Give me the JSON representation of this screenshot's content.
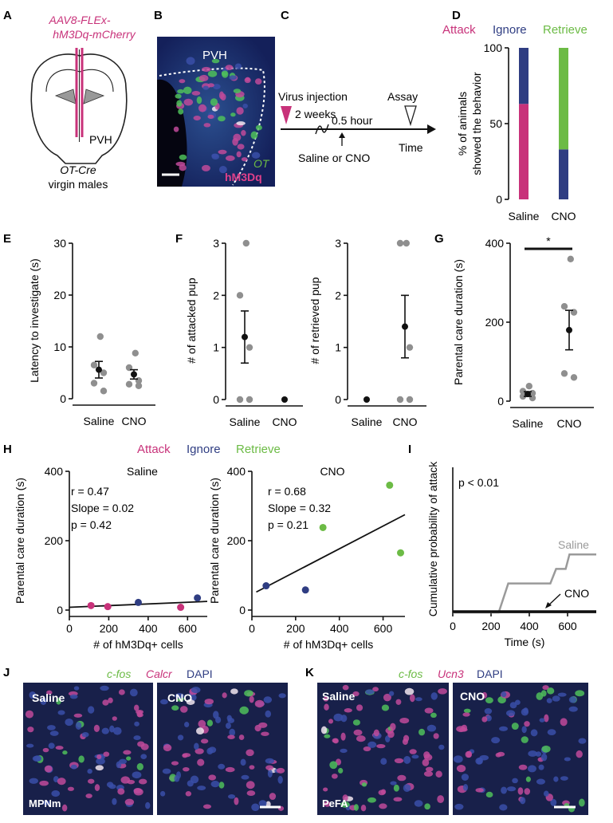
{
  "colors": {
    "attack": "#c8327a",
    "ignore": "#2f3d82",
    "retrieve": "#6cbb45",
    "saline_line": "#9a9a9a",
    "grey_dot": "#8f8f8f",
    "scale_white": "#ffffff"
  },
  "panel_labels": [
    "A",
    "B",
    "C",
    "D",
    "E",
    "F",
    "G",
    "H",
    "I",
    "J",
    "K"
  ],
  "panel_a": {
    "virus_line1": "AAV8-FLEx-",
    "virus_line2": "hM3Dq-mCherry",
    "region": "PVH",
    "mouse_line": "OT-Cre",
    "mouse_desc": "virgin males"
  },
  "panel_b": {
    "region": "PVH",
    "label_ot": "OT",
    "label_hm3dq": "hM3Dq"
  },
  "panel_c": {
    "virus": "Virus injection",
    "weeks": "2 weeks",
    "assay": "Assay",
    "hour": "0.5 hour",
    "treatment": "Saline or CNO",
    "time": "Time"
  },
  "legend": {
    "attack": "Attack",
    "ignore": "Ignore",
    "retrieve": "Retrieve"
  },
  "panel_j": {
    "label_cfos": "c-fos",
    "label_gene": "Calcr",
    "label_dapi": "DAPI",
    "left": "Saline",
    "right": "CNO",
    "region": "MPNm"
  },
  "panel_k": {
    "label_cfos": "c-fos",
    "label_gene": "Ucn3",
    "label_dapi": "DAPI",
    "left": "Saline",
    "right": "CNO",
    "region": "PeFA"
  },
  "chart_data": [
    {
      "id": "D",
      "type": "bar",
      "stacked": true,
      "ylabel1": "% of animals",
      "ylabel2": "showed the behavior",
      "ylim": [
        0,
        100
      ],
      "yticks": [
        "0",
        "50",
        "100"
      ],
      "categories": [
        "Saline",
        "CNO"
      ],
      "series": [
        {
          "name": "Attack",
          "values": [
            63,
            0
          ]
        },
        {
          "name": "Ignore",
          "values": [
            37,
            33
          ]
        },
        {
          "name": "Retrieve",
          "values": [
            0,
            67
          ]
        }
      ]
    },
    {
      "id": "E",
      "type": "scatter",
      "ylabel": "Latency to investigate (s)",
      "ylim": [
        0,
        30
      ],
      "yticks": [
        "0",
        "10",
        "20",
        "30"
      ],
      "categories": [
        "Saline",
        "CNO"
      ],
      "points": [
        [
          12,
          6.5,
          5,
          3,
          1.5
        ],
        [
          8.8,
          6,
          3.5,
          2.8,
          2.5
        ]
      ],
      "mean": [
        5.6,
        4.7
      ],
      "sem": [
        1.6,
        0.9
      ]
    },
    {
      "id": "F1",
      "type": "scatter",
      "ylabel": "# of attacked pup",
      "ylim": [
        0,
        3
      ],
      "yticks": [
        "0",
        "1",
        "2",
        "3"
      ],
      "categories": [
        "Saline",
        "CNO"
      ],
      "points": [
        [
          3,
          2,
          1,
          0,
          0
        ],
        []
      ],
      "mean": [
        1.2,
        0
      ],
      "sem": [
        0.5,
        0
      ]
    },
    {
      "id": "F2",
      "type": "scatter",
      "ylabel": "# of retrieved pup",
      "ylim": [
        0,
        3
      ],
      "yticks": [
        "0",
        "1",
        "2",
        "3"
      ],
      "categories": [
        "Saline",
        "CNO"
      ],
      "points": [
        [],
        [
          3,
          3,
          1,
          0,
          0
        ]
      ],
      "mean": [
        0,
        1.4
      ],
      "sem": [
        0,
        0.6
      ]
    },
    {
      "id": "G",
      "type": "scatter",
      "ylabel": "Parental care duration (s)",
      "ylim": [
        0,
        400
      ],
      "yticks": [
        "0",
        "200",
        "400"
      ],
      "categories": [
        "Saline",
        "CNO"
      ],
      "points": [
        [
          38,
          25,
          20,
          12,
          8
        ],
        [
          360,
          240,
          225,
          70,
          60
        ]
      ],
      "mean": [
        18,
        180
      ],
      "sem": [
        6,
        50
      ],
      "sig": "*"
    },
    {
      "id": "H1",
      "type": "scatter",
      "title": "Saline",
      "ylabel": "Parental care duration (s)",
      "xlabel": "# of hM3Dq+ cells",
      "xlim": [
        0,
        700
      ],
      "ylim": [
        0,
        400
      ],
      "xticks": [
        "0",
        "200",
        "400",
        "600"
      ],
      "yticks": [
        "0",
        "200",
        "400"
      ],
      "stats": [
        "r = 0.47",
        "Slope = 0.02",
        "p = 0.42"
      ],
      "points": [
        {
          "x": 110,
          "y": 13,
          "c": "attack"
        },
        {
          "x": 195,
          "y": 10,
          "c": "attack"
        },
        {
          "x": 565,
          "y": 8,
          "c": "attack"
        },
        {
          "x": 350,
          "y": 22,
          "c": "ignore"
        },
        {
          "x": 650,
          "y": 35,
          "c": "ignore"
        }
      ],
      "fit": [
        [
          0,
          8
        ],
        [
          700,
          25
        ]
      ]
    },
    {
      "id": "H2",
      "type": "scatter",
      "title": "CNO",
      "ylabel": "Parental care duration (s)",
      "xlabel": "# of hM3Dq+ cells",
      "xlim": [
        0,
        700
      ],
      "ylim": [
        0,
        400
      ],
      "xticks": [
        "0",
        "200",
        "400",
        "600"
      ],
      "yticks": [
        "0",
        "200",
        "400"
      ],
      "stats": [
        "r = 0.68",
        "Slope = 0.32",
        "p = 0.21"
      ],
      "points": [
        {
          "x": 65,
          "y": 70,
          "c": "ignore"
        },
        {
          "x": 245,
          "y": 58,
          "c": "ignore"
        },
        {
          "x": 325,
          "y": 238,
          "c": "retrieve"
        },
        {
          "x": 630,
          "y": 360,
          "c": "retrieve"
        },
        {
          "x": 680,
          "y": 165,
          "c": "retrieve"
        }
      ],
      "fit": [
        [
          20,
          52
        ],
        [
          700,
          275
        ]
      ]
    },
    {
      "id": "I",
      "type": "line",
      "ylabel": "Cumulative probability of attack",
      "xlabel": "Time (s)",
      "xlim": [
        0,
        750
      ],
      "xticks": [
        "0",
        "200",
        "400",
        "600"
      ],
      "ylim": [
        0,
        1
      ],
      "stat": "p < 0.01",
      "series": [
        {
          "name": "Saline",
          "x": [
            0,
            240,
            290,
            510,
            540,
            590,
            610,
            750
          ],
          "y": [
            0,
            0,
            0.2,
            0.2,
            0.3,
            0.3,
            0.4,
            0.4
          ]
        },
        {
          "name": "CNO",
          "x": [
            0,
            750
          ],
          "y": [
            0,
            0
          ]
        }
      ]
    }
  ]
}
